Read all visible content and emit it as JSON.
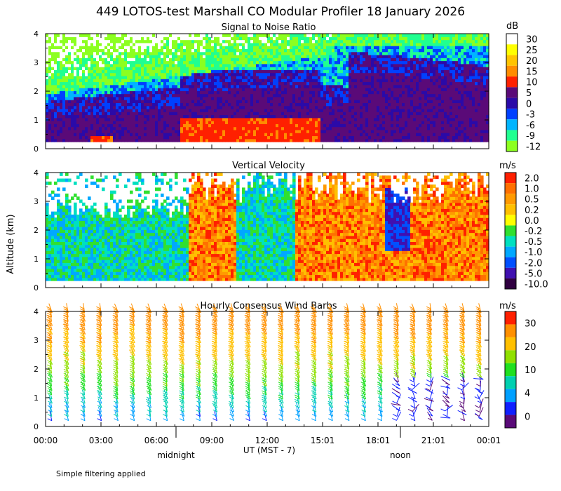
{
  "title": "449 LOTOS-test Marshall CO Modular Profiler 18 January 2026",
  "ylabel": "Altitude (km)",
  "footnote": "Simple filtering applied",
  "chart_data": [
    {
      "type": "heatmap",
      "title": "Signal to Noise Ratio",
      "units": "dB",
      "ylim": [
        0,
        4
      ],
      "yticks": [
        "0",
        "1",
        "2",
        "3",
        "4"
      ],
      "colorbar": {
        "labels": [
          "30",
          "25",
          "20",
          "15",
          "10",
          "5",
          "0",
          "-3",
          "-6",
          "-9",
          "-12"
        ],
        "colors": [
          "#ffffff",
          "#ffff00",
          "#ffc400",
          "#ff8c00",
          "#ff2000",
          "#5a0a78",
          "#2a0aa8",
          "#0040ff",
          "#00b4ff",
          "#20ff90",
          "#8cff20"
        ]
      }
    },
    {
      "type": "heatmap",
      "title": "Vertical Velocity",
      "units": "m/s",
      "ylim": [
        0,
        4
      ],
      "yticks": [
        "0",
        "1",
        "2",
        "3",
        "4"
      ],
      "colorbar": {
        "labels": [
          "2.0",
          "1.0",
          "0.5",
          "0.2",
          "0.0",
          "-0.2",
          "-0.5",
          "-1.0",
          "-2.0",
          "-5.0",
          "-10.0"
        ],
        "colors": [
          "#ff2000",
          "#ff7000",
          "#ff9a00",
          "#ffc000",
          "#ffff00",
          "#30e030",
          "#00e0c0",
          "#00a8ff",
          "#0050ff",
          "#4010b0",
          "#300040"
        ]
      }
    },
    {
      "type": "wind_barbs",
      "title": "Hourly Consensus Wind Barbs",
      "units": "m/s",
      "ylim": [
        0,
        4
      ],
      "yticks": [
        "0",
        "1",
        "2",
        "3",
        "4"
      ],
      "colorbar": {
        "labels": [
          "30",
          "20",
          "10",
          "4",
          "0"
        ],
        "colors": [
          "#ff2000",
          "#ff9000",
          "#ffc000",
          "#90e000",
          "#20e020",
          "#00d0b0",
          "#00a0ff",
          "#1020ff",
          "#5a0a78"
        ]
      }
    }
  ],
  "xaxis": {
    "ticks": [
      "00:00",
      "03:00",
      "06:00",
      "09:00",
      "12:00",
      "15:01",
      "18:01",
      "21:01",
      "00:01"
    ],
    "label": "UT  (MST - 7)",
    "midnight": "midnight",
    "noon": "noon"
  }
}
